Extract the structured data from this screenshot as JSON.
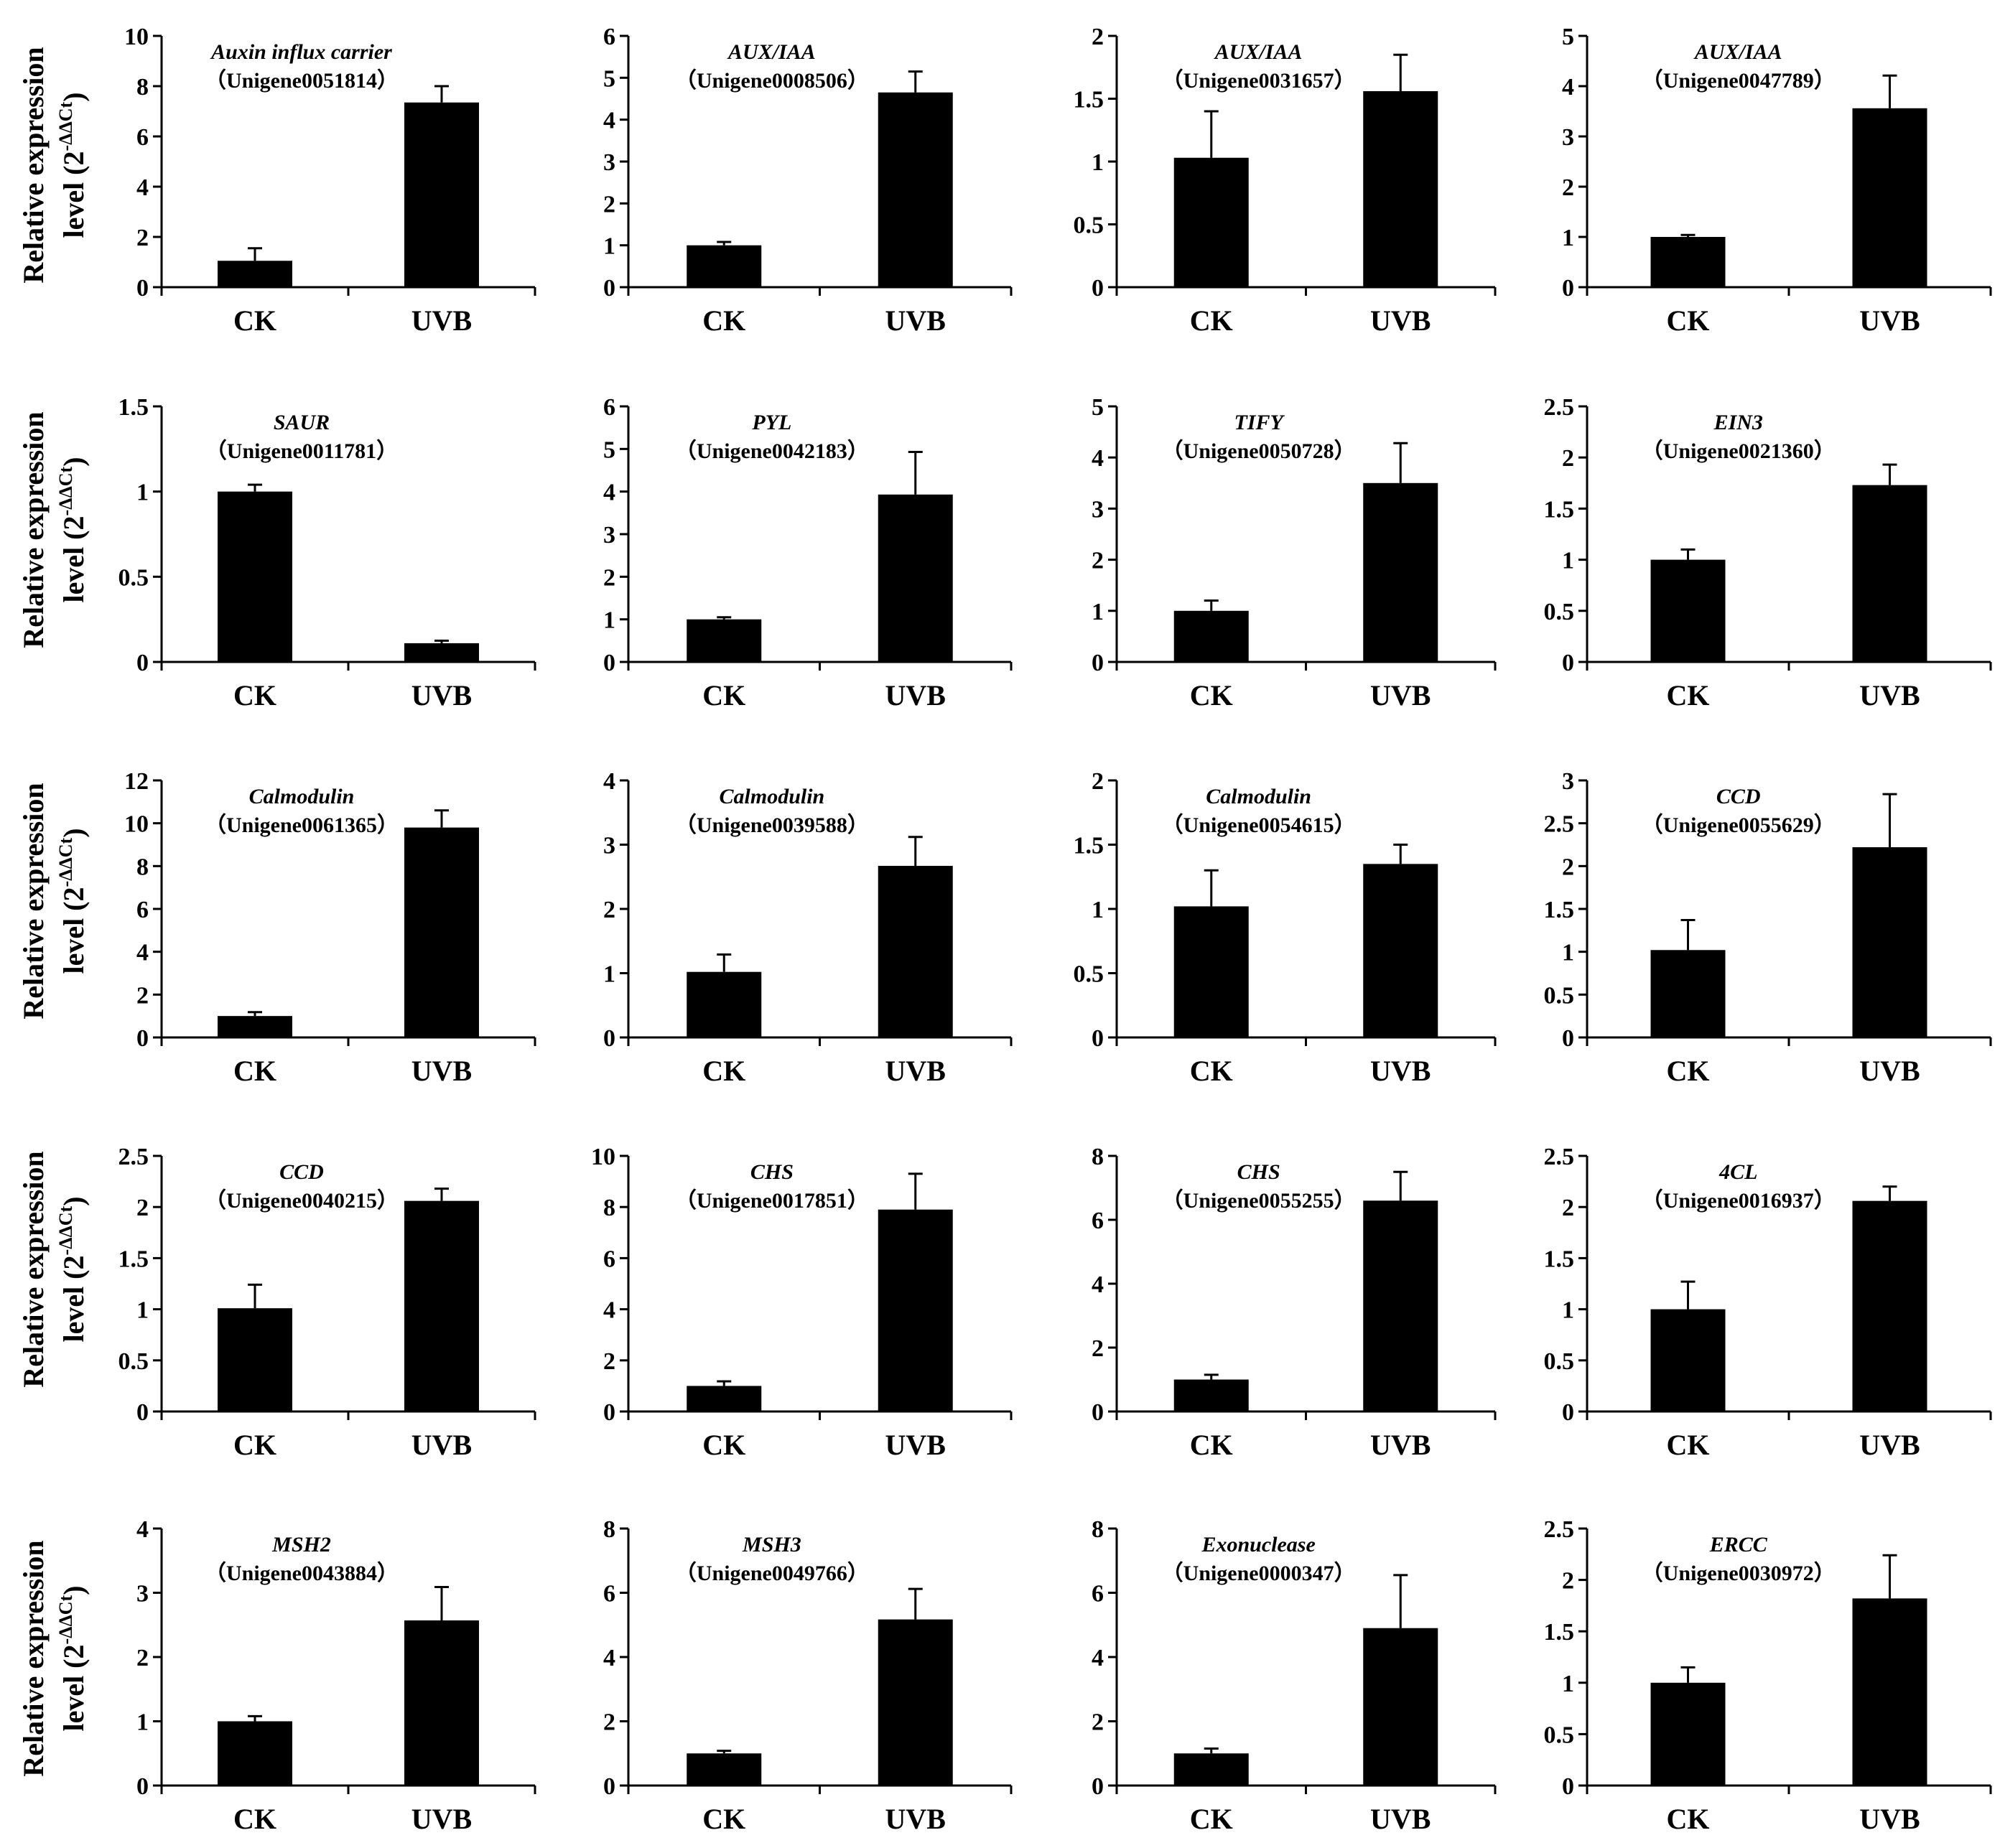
{
  "figure": {
    "categories": [
      "CK",
      "UVB"
    ],
    "ylabel_line1": "Relative expression",
    "ylabel_line2_prefix": "level (2",
    "ylabel_superscript": "-ΔΔCt",
    "ylabel_line2_suffix": ")",
    "bar_color": "#000000"
  },
  "chart_data": [
    {
      "type": "bar",
      "gene": "Auxin influx carrier",
      "unigene": "（Unigene0051814）",
      "categories": [
        "CK",
        "UVB"
      ],
      "values": [
        1.05,
        7.35
      ],
      "errors": [
        0.5,
        0.65
      ],
      "ylim": [
        0,
        10
      ],
      "ticks": [
        "0",
        "2",
        "4",
        "6",
        "8",
        "10"
      ]
    },
    {
      "type": "bar",
      "gene": "AUX/IAA",
      "unigene": "（Unigene0008506）",
      "categories": [
        "CK",
        "UVB"
      ],
      "values": [
        1.0,
        4.65
      ],
      "errors": [
        0.08,
        0.5
      ],
      "ylim": [
        0,
        6
      ],
      "ticks": [
        "0",
        "1",
        "2",
        "3",
        "4",
        "5",
        "6"
      ]
    },
    {
      "type": "bar",
      "gene": "AUX/IAA",
      "unigene": "（Unigene0031657）",
      "categories": [
        "CK",
        "UVB"
      ],
      "values": [
        1.03,
        1.56
      ],
      "errors": [
        0.37,
        0.29
      ],
      "ylim": [
        0,
        2
      ],
      "ticks": [
        "0",
        "0.5",
        "1",
        "1.5",
        "2"
      ]
    },
    {
      "type": "bar",
      "gene": "AUX/IAA",
      "unigene": "（Unigene0047789）",
      "categories": [
        "CK",
        "UVB"
      ],
      "values": [
        1.0,
        3.56
      ],
      "errors": [
        0.04,
        0.65
      ],
      "ylim": [
        0,
        5
      ],
      "ticks": [
        "0",
        "1",
        "2",
        "3",
        "4",
        "5"
      ]
    },
    {
      "type": "bar",
      "gene": "SAUR",
      "unigene": "（Unigene0011781）",
      "categories": [
        "CK",
        "UVB"
      ],
      "values": [
        1.0,
        0.11
      ],
      "errors": [
        0.04,
        0.015
      ],
      "ylim": [
        0,
        1.5
      ],
      "ticks": [
        "0",
        "0.5",
        "1",
        "1.5"
      ]
    },
    {
      "type": "bar",
      "gene": "PYL",
      "unigene": "（Unigene0042183）",
      "categories": [
        "CK",
        "UVB"
      ],
      "values": [
        1.0,
        3.93
      ],
      "errors": [
        0.05,
        1.0
      ],
      "ylim": [
        0,
        6
      ],
      "ticks": [
        "0",
        "1",
        "2",
        "3",
        "4",
        "5",
        "6"
      ]
    },
    {
      "type": "bar",
      "gene": "TIFY",
      "unigene": "（Unigene0050728）",
      "categories": [
        "CK",
        "UVB"
      ],
      "values": [
        1.0,
        3.5
      ],
      "errors": [
        0.2,
        0.78
      ],
      "ylim": [
        0,
        5
      ],
      "ticks": [
        "0",
        "1",
        "2",
        "3",
        "4",
        "5"
      ]
    },
    {
      "type": "bar",
      "gene": "EIN3",
      "unigene": "（Unigene0021360）",
      "categories": [
        "CK",
        "UVB"
      ],
      "values": [
        1.0,
        1.73
      ],
      "errors": [
        0.1,
        0.2
      ],
      "ylim": [
        0,
        2.5
      ],
      "ticks": [
        "0",
        "0.5",
        "1",
        "1.5",
        "2",
        "2.5"
      ]
    },
    {
      "type": "bar",
      "gene": "Calmodulin",
      "unigene": "（Unigene0061365）",
      "categories": [
        "CK",
        "UVB"
      ],
      "values": [
        1.0,
        9.8
      ],
      "errors": [
        0.18,
        0.8
      ],
      "ylim": [
        0,
        12
      ],
      "ticks": [
        "0",
        "2",
        "4",
        "6",
        "8",
        "10",
        "12"
      ]
    },
    {
      "type": "bar",
      "gene": "Calmodulin",
      "unigene": "（Unigene0039588）",
      "categories": [
        "CK",
        "UVB"
      ],
      "values": [
        1.02,
        2.67
      ],
      "errors": [
        0.27,
        0.45
      ],
      "ylim": [
        0,
        4
      ],
      "ticks": [
        "0",
        "1",
        "2",
        "3",
        "4"
      ]
    },
    {
      "type": "bar",
      "gene": "Calmodulin",
      "unigene": "（Unigene0054615）",
      "categories": [
        "CK",
        "UVB"
      ],
      "values": [
        1.02,
        1.35
      ],
      "errors": [
        0.28,
        0.15
      ],
      "ylim": [
        0,
        2
      ],
      "ticks": [
        "0",
        "0.5",
        "1",
        "1.5",
        "2"
      ]
    },
    {
      "type": "bar",
      "gene": "CCD",
      "unigene": "（Unigene0055629）",
      "categories": [
        "CK",
        "UVB"
      ],
      "values": [
        1.02,
        2.22
      ],
      "errors": [
        0.35,
        0.62
      ],
      "ylim": [
        0,
        3
      ],
      "ticks": [
        "0",
        "0.5",
        "1",
        "1.5",
        "2",
        "2.5",
        "3"
      ]
    },
    {
      "type": "bar",
      "gene": "CCD",
      "unigene": "（Unigene0040215）",
      "categories": [
        "CK",
        "UVB"
      ],
      "values": [
        1.01,
        2.06
      ],
      "errors": [
        0.23,
        0.12
      ],
      "ylim": [
        0,
        2.5
      ],
      "ticks": [
        "0",
        "0.5",
        "1",
        "1.5",
        "2",
        "2.5"
      ]
    },
    {
      "type": "bar",
      "gene": "CHS",
      "unigene": "（Unigene0017851）",
      "categories": [
        "CK",
        "UVB"
      ],
      "values": [
        1.0,
        7.9
      ],
      "errors": [
        0.18,
        1.4
      ],
      "ylim": [
        0,
        10
      ],
      "ticks": [
        "0",
        "2",
        "4",
        "6",
        "8",
        "10"
      ]
    },
    {
      "type": "bar",
      "gene": "CHS",
      "unigene": "（Unigene0055255）",
      "categories": [
        "CK",
        "UVB"
      ],
      "values": [
        1.0,
        6.6
      ],
      "errors": [
        0.15,
        0.9
      ],
      "ylim": [
        0,
        8
      ],
      "ticks": [
        "0",
        "2",
        "4",
        "6",
        "8"
      ]
    },
    {
      "type": "bar",
      "gene": "4CL",
      "unigene": "（Unigene0016937）",
      "categories": [
        "CK",
        "UVB"
      ],
      "values": [
        1.0,
        2.06
      ],
      "errors": [
        0.27,
        0.14
      ],
      "ylim": [
        0,
        2.5
      ],
      "ticks": [
        "0",
        "0.5",
        "1",
        "1.5",
        "2",
        "2.5"
      ]
    },
    {
      "type": "bar",
      "gene": "MSH2",
      "unigene": "（Unigene0043884）",
      "categories": [
        "CK",
        "UVB"
      ],
      "values": [
        1.0,
        2.57
      ],
      "errors": [
        0.08,
        0.52
      ],
      "ylim": [
        0,
        4
      ],
      "ticks": [
        "0",
        "1",
        "2",
        "3",
        "4"
      ]
    },
    {
      "type": "bar",
      "gene": "MSH3",
      "unigene": "（Unigene0049766）",
      "categories": [
        "CK",
        "UVB"
      ],
      "values": [
        1.0,
        5.17
      ],
      "errors": [
        0.08,
        0.95
      ],
      "ylim": [
        0,
        8
      ],
      "ticks": [
        "0",
        "2",
        "4",
        "6",
        "8"
      ]
    },
    {
      "type": "bar",
      "gene": "Exonuclease",
      "unigene": "（Unigene0000347）",
      "categories": [
        "CK",
        "UVB"
      ],
      "values": [
        1.0,
        4.9
      ],
      "errors": [
        0.15,
        1.65
      ],
      "ylim": [
        0,
        8
      ],
      "ticks": [
        "0",
        "2",
        "4",
        "6",
        "8"
      ]
    },
    {
      "type": "bar",
      "gene": "ERCC",
      "unigene": "（Unigene0030972）",
      "categories": [
        "CK",
        "UVB"
      ],
      "values": [
        1.0,
        1.82
      ],
      "errors": [
        0.15,
        0.42
      ],
      "ylim": [
        0,
        2.5
      ],
      "ticks": [
        "0",
        "0.5",
        "1",
        "1.5",
        "2",
        "2.5"
      ]
    }
  ]
}
